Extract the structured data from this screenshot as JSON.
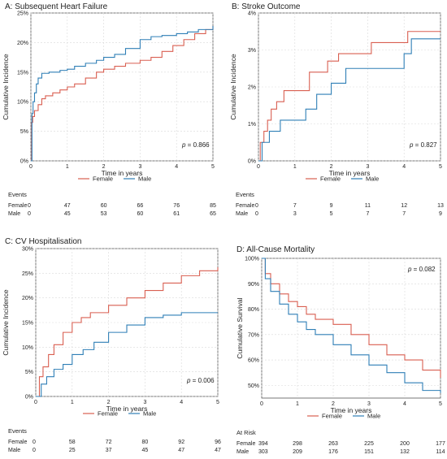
{
  "chart_data": [
    {
      "type": "line",
      "title": "A: Subsequent Heart Failure",
      "xlabel": "Time in years",
      "ylabel": "Cumulative Incidence",
      "xlim": [
        0,
        5
      ],
      "ylim": [
        0,
        0.25
      ],
      "x_ticks": [
        0,
        1,
        2,
        3,
        4,
        5
      ],
      "y_ticks": [
        0,
        0.05,
        0.1,
        0.15,
        0.2,
        0.25
      ],
      "y_tick_labels": [
        "0%",
        "5%",
        "10%",
        "15%",
        "20%",
        "25%"
      ],
      "grid": true,
      "legend_position": "bottom",
      "annotation": {
        "italic": "p",
        "rest": " = 0.866"
      },
      "series": [
        {
          "name": "Female",
          "color": "#d95f51",
          "x": [
            0,
            0.02,
            0.05,
            0.1,
            0.2,
            0.3,
            0.4,
            0.6,
            0.8,
            1.0,
            1.2,
            1.5,
            1.8,
            2.0,
            2.3,
            2.6,
            3.0,
            3.3,
            3.6,
            3.9,
            4.2,
            4.5,
            4.8,
            5.0
          ],
          "y": [
            0,
            0.065,
            0.075,
            0.085,
            0.095,
            0.105,
            0.11,
            0.115,
            0.12,
            0.125,
            0.13,
            0.14,
            0.15,
            0.155,
            0.16,
            0.165,
            0.17,
            0.175,
            0.185,
            0.195,
            0.205,
            0.215,
            0.222,
            0.228
          ]
        },
        {
          "name": "Male",
          "color": "#2f7fb6",
          "x": [
            0,
            0.03,
            0.06,
            0.1,
            0.15,
            0.2,
            0.3,
            0.5,
            0.8,
            1.0,
            1.2,
            1.5,
            1.8,
            2.0,
            2.3,
            2.6,
            3.0,
            3.3,
            3.6,
            4.0,
            4.3,
            4.6,
            5.0
          ],
          "y": [
            0,
            0.08,
            0.1,
            0.115,
            0.13,
            0.14,
            0.148,
            0.15,
            0.153,
            0.155,
            0.16,
            0.165,
            0.17,
            0.175,
            0.18,
            0.19,
            0.205,
            0.21,
            0.212,
            0.215,
            0.218,
            0.222,
            0.228
          ]
        }
      ],
      "table": {
        "title": "Events",
        "x": [
          0,
          1,
          2,
          3,
          4,
          5
        ],
        "rows": [
          {
            "label": "Female",
            "values": [
              "0",
              "47",
              "60",
              "66",
              "76",
              "85"
            ]
          },
          {
            "label": "Male",
            "values": [
              "0",
              "45",
              "53",
              "60",
              "61",
              "65"
            ]
          }
        ]
      }
    },
    {
      "type": "line",
      "title": "B: Stroke Outcome",
      "xlabel": "Time in years",
      "ylabel": "Cumulative Incidence",
      "xlim": [
        0,
        5
      ],
      "ylim": [
        0,
        0.04
      ],
      "x_ticks": [
        0,
        1,
        2,
        3,
        4,
        5
      ],
      "y_ticks": [
        0,
        0.01,
        0.02,
        0.03,
        0.04
      ],
      "y_tick_labels": [
        "0%",
        "1%",
        "2%",
        "3%",
        "4%"
      ],
      "grid": true,
      "legend_position": "bottom",
      "annotation": {
        "italic": "p",
        "rest": " = 0.827"
      },
      "series": [
        {
          "name": "Female",
          "color": "#d95f51",
          "x": [
            0,
            0.05,
            0.15,
            0.25,
            0.35,
            0.5,
            0.7,
            1.0,
            1.4,
            1.9,
            2.2,
            2.6,
            3.1,
            3.5,
            4.1,
            4.5,
            5.0
          ],
          "y": [
            0,
            0.005,
            0.008,
            0.011,
            0.014,
            0.016,
            0.019,
            0.019,
            0.024,
            0.027,
            0.029,
            0.029,
            0.032,
            0.032,
            0.035,
            0.035,
            0.035
          ]
        },
        {
          "name": "Male",
          "color": "#2f7fb6",
          "x": [
            0,
            0.1,
            0.3,
            0.6,
            0.9,
            1.3,
            1.6,
            2.0,
            2.4,
            3.0,
            3.6,
            4.0,
            4.2,
            5.0
          ],
          "y": [
            0,
            0.005,
            0.008,
            0.011,
            0.011,
            0.014,
            0.018,
            0.021,
            0.025,
            0.025,
            0.025,
            0.029,
            0.033,
            0.033
          ]
        }
      ],
      "table": {
        "title": "Events",
        "x": [
          0,
          1,
          2,
          3,
          4,
          5
        ],
        "rows": [
          {
            "label": "Female",
            "values": [
              "0",
              "7",
              "9",
              "11",
              "12",
              "13"
            ]
          },
          {
            "label": "Male",
            "values": [
              "0",
              "3",
              "5",
              "7",
              "7",
              "9"
            ]
          }
        ]
      }
    },
    {
      "type": "line",
      "title": "C: CV Hospitalisation",
      "xlabel": "Time in years",
      "ylabel": "Cumulative Incidence",
      "xlim": [
        0,
        5
      ],
      "ylim": [
        0,
        0.3
      ],
      "x_ticks": [
        0,
        1,
        2,
        3,
        4,
        5
      ],
      "y_ticks": [
        0,
        0.05,
        0.1,
        0.15,
        0.2,
        0.25,
        0.3
      ],
      "y_tick_labels": [
        "0%",
        "5%",
        "10%",
        "15%",
        "20%",
        "25%",
        "30%"
      ],
      "grid": true,
      "legend_position": "bottom",
      "annotation": {
        "italic": "p",
        "rest": " = 0.006"
      },
      "series": [
        {
          "name": "Female",
          "color": "#d95f51",
          "x": [
            0,
            0.1,
            0.2,
            0.35,
            0.5,
            0.75,
            1.0,
            1.25,
            1.5,
            2.0,
            2.5,
            3.0,
            3.5,
            4.0,
            4.5,
            5.0
          ],
          "y": [
            0,
            0.04,
            0.06,
            0.085,
            0.105,
            0.13,
            0.15,
            0.16,
            0.17,
            0.185,
            0.2,
            0.215,
            0.23,
            0.245,
            0.255,
            0.262
          ]
        },
        {
          "name": "Male",
          "color": "#2f7fb6",
          "x": [
            0,
            0.15,
            0.3,
            0.5,
            0.75,
            1.0,
            1.3,
            1.6,
            2.0,
            2.5,
            3.0,
            3.5,
            4.0,
            5.0
          ],
          "y": [
            0,
            0.025,
            0.04,
            0.055,
            0.065,
            0.085,
            0.095,
            0.11,
            0.13,
            0.145,
            0.16,
            0.165,
            0.17,
            0.17
          ]
        }
      ],
      "table": {
        "title": "Events",
        "x": [
          0,
          1,
          2,
          3,
          4,
          5
        ],
        "rows": [
          {
            "label": "Female",
            "values": [
              "0",
              "58",
              "72",
              "80",
              "92",
              "96"
            ]
          },
          {
            "label": "Male",
            "values": [
              "0",
              "25",
              "37",
              "45",
              "47",
              "47"
            ]
          }
        ]
      }
    },
    {
      "type": "line",
      "title": "D: All-Cause Mortality",
      "xlabel": "Time in years",
      "ylabel": "Cumulative Survival",
      "xlim": [
        0,
        5
      ],
      "ylim": [
        0.45,
        1.0
      ],
      "x_ticks": [
        0,
        1,
        2,
        3,
        4,
        5
      ],
      "y_ticks": [
        0.5,
        0.6,
        0.7,
        0.8,
        0.9,
        1.0
      ],
      "y_tick_labels": [
        "50%",
        "60%",
        "70%",
        "80%",
        "90%",
        "100%"
      ],
      "grid": true,
      "legend_position": "bottom",
      "annotation": {
        "italic": "p",
        "rest": " = 0.082"
      },
      "series": [
        {
          "name": "Female",
          "color": "#d95f51",
          "x": [
            0,
            0.1,
            0.25,
            0.5,
            0.75,
            1.0,
            1.25,
            1.5,
            2.0,
            2.5,
            3.0,
            3.5,
            4.0,
            4.5,
            5.0
          ],
          "y": [
            1.0,
            0.94,
            0.9,
            0.86,
            0.83,
            0.81,
            0.78,
            0.76,
            0.74,
            0.7,
            0.66,
            0.62,
            0.6,
            0.56,
            0.53
          ]
        },
        {
          "name": "Male",
          "color": "#2f7fb6",
          "x": [
            0,
            0.1,
            0.25,
            0.5,
            0.75,
            1.0,
            1.25,
            1.5,
            2.0,
            2.5,
            3.0,
            3.5,
            4.0,
            4.5,
            5.0
          ],
          "y": [
            1.0,
            0.92,
            0.87,
            0.82,
            0.78,
            0.75,
            0.72,
            0.7,
            0.66,
            0.62,
            0.58,
            0.55,
            0.51,
            0.48,
            0.47
          ]
        }
      ],
      "table": {
        "title": "At Risk",
        "x": [
          0,
          1,
          2,
          3,
          4,
          5
        ],
        "rows": [
          {
            "label": "Female",
            "values": [
              "394",
              "298",
              "263",
              "225",
              "200",
              "177"
            ]
          },
          {
            "label": "Male",
            "values": [
              "303",
              "209",
              "176",
              "151",
              "132",
              "114"
            ]
          }
        ]
      }
    }
  ]
}
